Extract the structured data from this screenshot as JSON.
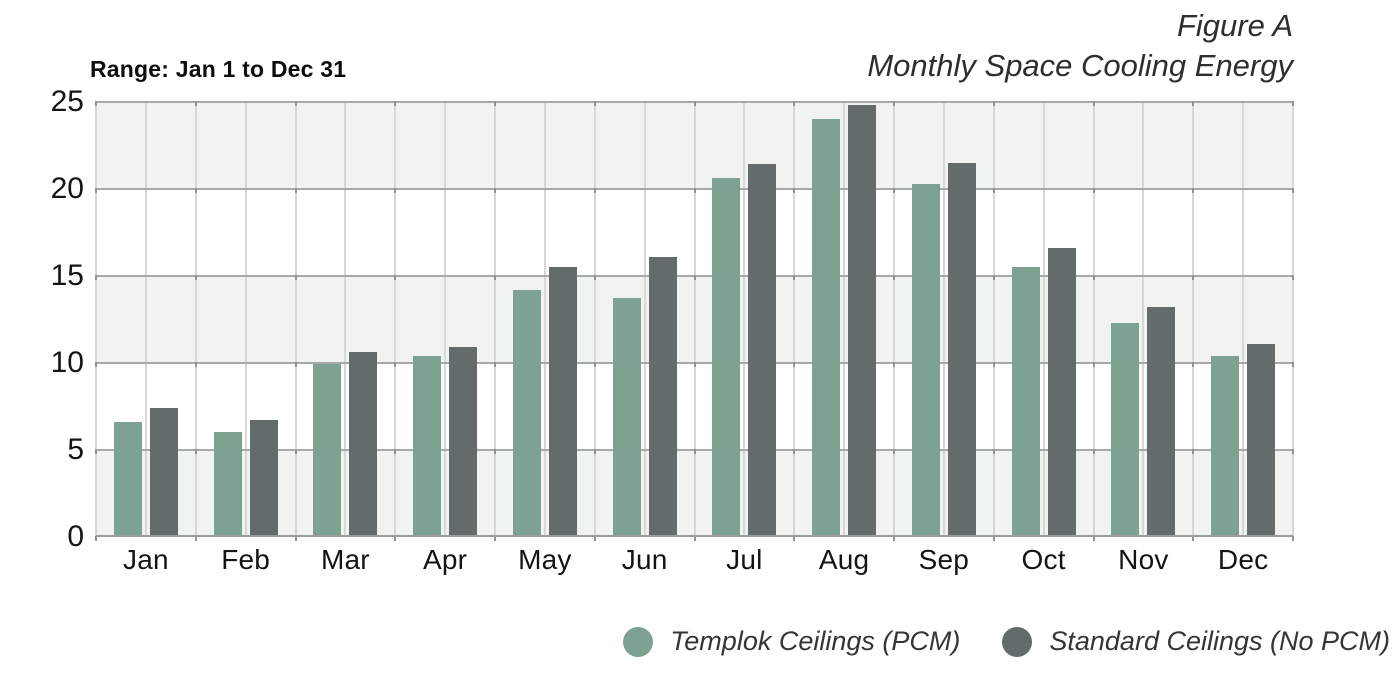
{
  "header": {
    "range_label": "Range: Jan 1 to Dec 31",
    "figure_label": "Figure A",
    "title": "Monthly Space Cooling Energy"
  },
  "chart_data": {
    "type": "bar",
    "title": "Monthly Space Cooling Energy",
    "subtitle": "Figure A",
    "annotation": "Range: Jan 1 to Dec 31",
    "categories": [
      "Jan",
      "Feb",
      "Mar",
      "Apr",
      "May",
      "Jun",
      "Jul",
      "Aug",
      "Sep",
      "Oct",
      "Nov",
      "Dec"
    ],
    "series": [
      {
        "name": "Templok Ceilings (PCM)",
        "color": "#7DA292",
        "values": [
          6.5,
          5.9,
          9.8,
          10.3,
          14.1,
          13.6,
          20.5,
          23.9,
          20.2,
          15.4,
          12.2,
          10.3
        ]
      },
      {
        "name": "Standard Ceilings (No PCM)",
        "color": "#646B6B",
        "values": [
          7.3,
          6.6,
          10.5,
          10.8,
          15.4,
          16.0,
          21.3,
          24.7,
          21.4,
          16.5,
          13.1,
          11.0
        ]
      }
    ],
    "xlabel": "",
    "ylabel": "",
    "ylim": [
      0,
      25
    ],
    "yticks": [
      0,
      5,
      10,
      15,
      20,
      25
    ],
    "grid": "horizontal gridlines at ticks; vertical gridlines at month centers; alternating 5-unit background bands",
    "legend_position": "bottom-right"
  },
  "legend": {
    "items": [
      {
        "label": "Templok Ceilings (PCM)",
        "color": "#7DA292"
      },
      {
        "label": "Standard Ceilings (No PCM)",
        "color": "#646B6B"
      }
    ]
  },
  "colors": {
    "series_pcm": "#7DA292",
    "series_no_pcm": "#646B6B",
    "band_fill": "#F1F3F1",
    "hgrid": "#A6A9A7",
    "vgrid": "#D5D8D6",
    "axis_line": "#9A9F9D",
    "boundary_tick": "#8F9492",
    "text": "#131513",
    "title_text": "#2D2F2E"
  }
}
